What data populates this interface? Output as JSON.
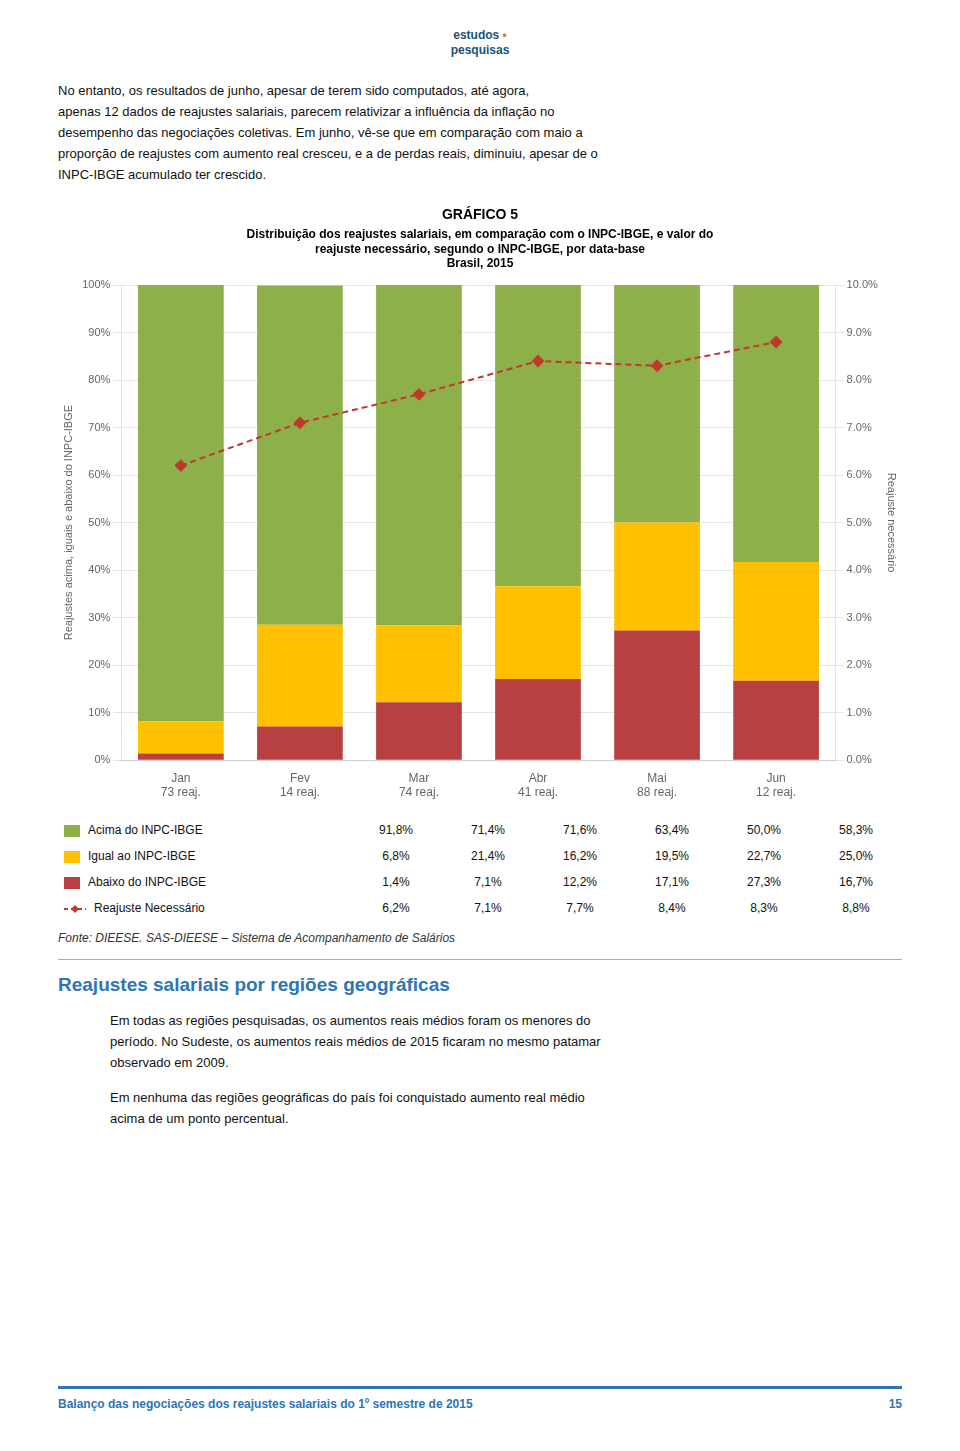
{
  "page": {
    "logo": [
      "estudos",
      "pesquisas"
    ],
    "logo_mark": "•",
    "intro": [
      "No entanto, os resultados de junho, apesar de terem sido computados, até agora,",
      "apenas 12 dados de reajustes salariais, parecem relativizar a influência da inflação no",
      "desempenho das negociações coletivas. Em junho, vê-se que em comparação com maio a",
      "proporção de reajustes com aumento real cresceu, e a de perdas reais, diminuiu, apesar de o",
      "INPC-IBGE acumulado ter crescido."
    ],
    "source": "Fonte: DIEESE. SAS-DIEESE – Sistema de Acompanhamento de Salários",
    "page_title": "Reajustes salariais por regiões geográficas",
    "body": [
      [
        "Em todas as regiões pesquisadas, os aumentos reais médios foram os menores do",
        "período. No Sudeste, os aumentos reais médios de 2015 ficaram no mesmo patamar",
        "observado em 2009."
      ],
      [
        "Em nenhuma das regiões geográficas do país foi conquistado aumento real médio",
        "acima de um ponto percentual."
      ]
    ],
    "footer": "Balanço das negociações dos reajustes salariais do 1º semestre de 2015",
    "footer_page": "15"
  },
  "chart_data": {
    "type": "bar",
    "title": "GRÁFICO 5",
    "subtitle": [
      "Distribuição dos reajustes salariais, em comparação com o INPC-IBGE, e valor do",
      "reajuste necessário, segundo o INPC-IBGE, por data-base",
      "Brasil, 2015"
    ],
    "categories": [
      "Jan",
      "Fev",
      "Mar",
      "Abr",
      "Mai",
      "Jun"
    ],
    "annotations": [
      "73 reaj.",
      "14 reaj.",
      "74 reaj.",
      "41 reaj.",
      "88 reaj.",
      "12 reaj."
    ],
    "ylabel": "Reajustes acima, iguais e abaixo do INPC-IBGE",
    "y2label": "Reajuste necessário",
    "stacked": true,
    "grid": true,
    "legend": "bottom",
    "data_labels": false,
    "series": [
      {
        "name": "Abaixo do INPC-IBGE",
        "color": "#b94040",
        "values": [
          1.4,
          7.1,
          12.2,
          17.1,
          27.3,
          16.7
        ],
        "value_labels": [
          "1,4%",
          "7,1%",
          "12,2%",
          "17,1%",
          "27,3%",
          "16,7%"
        ]
      },
      {
        "name": "Igual ao INPC-IBGE",
        "color": "#ffc000",
        "values": [
          6.8,
          21.4,
          16.2,
          19.5,
          22.7,
          25.0
        ],
        "value_labels": [
          "6,8%",
          "21,4%",
          "16,2%",
          "19,5%",
          "22,7%",
          "25,0%"
        ]
      },
      {
        "name": "Acima do INPC-IBGE",
        "color": "#8db04b",
        "values": [
          91.8,
          71.4,
          71.6,
          63.4,
          50.0,
          58.3
        ],
        "value_labels": [
          "91,8%",
          "71,4%",
          "71,6%",
          "63,4%",
          "50,0%",
          "58,3%"
        ]
      },
      {
        "name": "Reajuste Necessário",
        "type": "line",
        "axis": "y2",
        "color": "#c0392b",
        "line_style": "dashed",
        "marker": "diamond",
        "values": [
          6.2,
          7.1,
          7.7,
          8.4,
          8.3,
          8.8
        ],
        "value_labels": [
          "6,2%",
          "7,1%",
          "7,7%",
          "8,4%",
          "8,3%",
          "8,8%"
        ]
      }
    ],
    "ylim": [
      0,
      100
    ],
    "yticks": [
      {
        "value": 0,
        "label": "0%"
      },
      {
        "value": 10,
        "label": "10%"
      },
      {
        "value": 20,
        "label": "20%"
      },
      {
        "value": 30,
        "label": "30%"
      },
      {
        "value": 40,
        "label": "40%"
      },
      {
        "value": 50,
        "label": "50%"
      },
      {
        "value": 60,
        "label": "60%"
      },
      {
        "value": 70,
        "label": "70%"
      },
      {
        "value": 80,
        "label": "80%"
      },
      {
        "value": 90,
        "label": "90%"
      },
      {
        "value": 100,
        "label": "100%"
      }
    ],
    "y2lim": [
      0,
      10
    ],
    "y2ticks": [
      {
        "value": 0,
        "label": "0.0%"
      },
      {
        "value": 1,
        "label": "1.0%"
      },
      {
        "value": 2,
        "label": "2.0%"
      },
      {
        "value": 3,
        "label": "3.0%"
      },
      {
        "value": 4,
        "label": "4.0%"
      },
      {
        "value": 5,
        "label": "5.0%"
      },
      {
        "value": 6,
        "label": "6.0%"
      },
      {
        "value": 7,
        "label": "7.0%"
      },
      {
        "value": 8,
        "label": "8.0%"
      },
      {
        "value": 9,
        "label": "9.0%"
      },
      {
        "value": 10,
        "label": "10.0%"
      }
    ]
  }
}
